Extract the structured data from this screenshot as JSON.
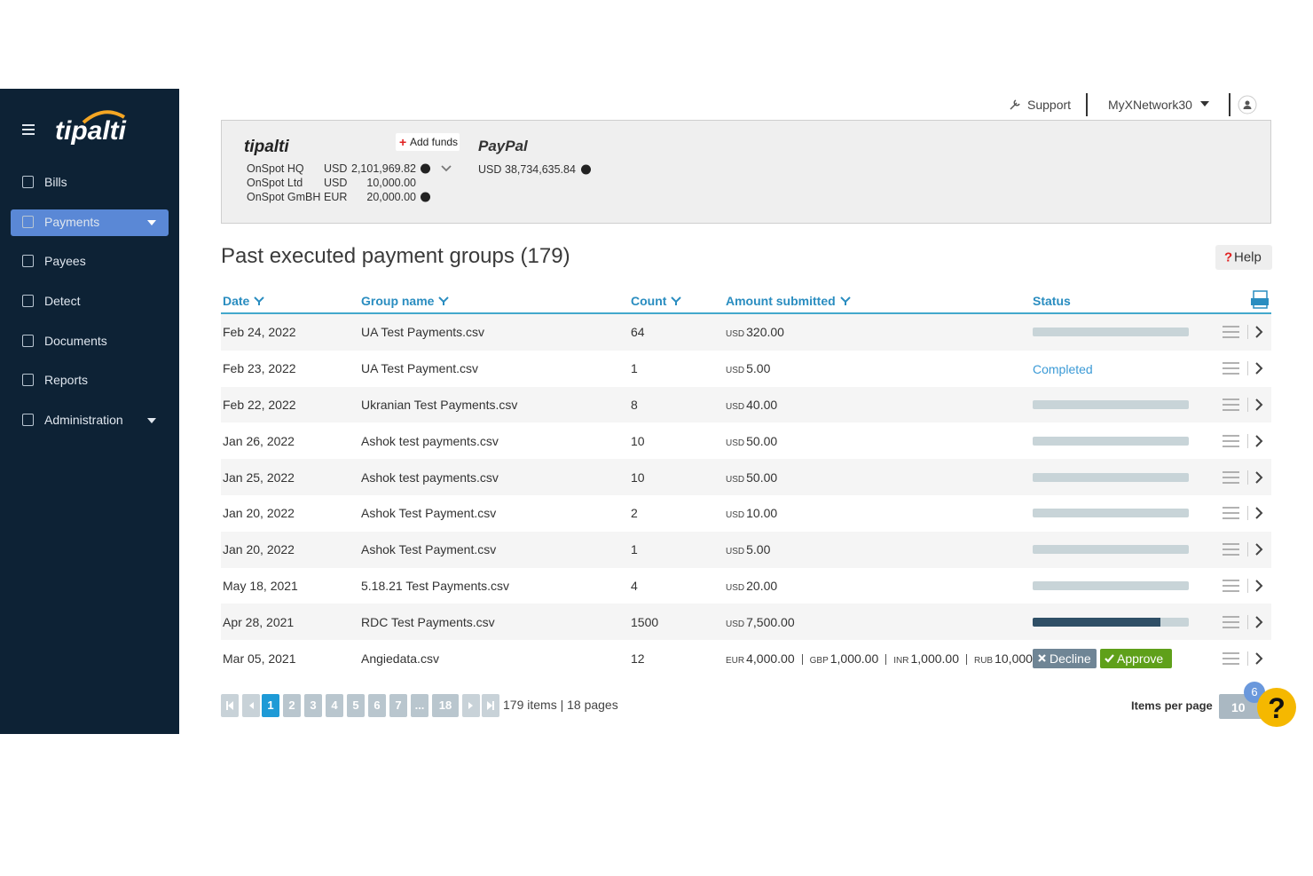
{
  "header": {
    "support": "Support",
    "account": "MyXNetwork30"
  },
  "sidebar": {
    "logo": "tipalti",
    "nav": [
      "Bills",
      "Payments",
      "Payees",
      "Detect",
      "Documents",
      "Reports",
      "Administration"
    ]
  },
  "funding": {
    "logo": "tipalti",
    "add_funds_icon": "+",
    "add_funds": "Add funds",
    "accounts": [
      {
        "name": "OnSpot HQ",
        "currency": "USD",
        "amount": "2,101,969.82"
      },
      {
        "name": "OnSpot Ltd",
        "currency": "USD",
        "amount": "10,000.00"
      },
      {
        "name": "OnSpot GmBH",
        "currency": "EUR",
        "amount": "20,000.00"
      }
    ],
    "paypal": {
      "logo": "PayPal",
      "currency": "USD",
      "amount": "38,734,635.84"
    }
  },
  "title": "Past executed payment groups (179)",
  "help_icon": "?",
  "help": "Help",
  "table": {
    "columns": [
      "Date",
      "Group name",
      "Count",
      "Amount submitted",
      "Status"
    ],
    "rows": [
      {
        "date": "Feb 24, 2022",
        "group": "UA Test Payments.csv",
        "count": 64,
        "amounts": [
          {
            "currency": "USD",
            "amount": "320.00"
          }
        ],
        "progress": 0
      },
      {
        "date": "Feb 23, 2022",
        "group": "UA Test Payment.csv",
        "count": 1,
        "amounts": [
          {
            "currency": "USD",
            "amount": "5.00"
          }
        ],
        "status": "Completed"
      },
      {
        "date": "Feb 22, 2022",
        "group": "Ukranian Test Payments.csv",
        "count": 8,
        "amounts": [
          {
            "currency": "USD",
            "amount": "40.00"
          }
        ],
        "progress": 0
      },
      {
        "date": "Jan 26, 2022",
        "group": "Ashok test payments.csv",
        "count": 10,
        "amounts": [
          {
            "currency": "USD",
            "amount": "50.00"
          }
        ],
        "progress": 0
      },
      {
        "date": "Jan 25, 2022",
        "group": "Ashok test payments.csv",
        "count": 10,
        "amounts": [
          {
            "currency": "USD",
            "amount": "50.00"
          }
        ],
        "progress": 0
      },
      {
        "date": "Jan 20, 2022",
        "group": "Ashok Test Payment.csv",
        "count": 2,
        "amounts": [
          {
            "currency": "USD",
            "amount": "10.00"
          }
        ],
        "progress": 0
      },
      {
        "date": "Jan 20, 2022",
        "group": "Ashok Test Payment.csv",
        "count": 1,
        "amounts": [
          {
            "currency": "USD",
            "amount": "5.00"
          }
        ],
        "progress": 0
      },
      {
        "date": "May 18, 2021",
        "group": "5.18.21 Test Payments.csv",
        "count": 4,
        "amounts": [
          {
            "currency": "USD",
            "amount": "20.00"
          }
        ],
        "progress": 0
      },
      {
        "date": "Apr 28, 2021",
        "group": "RDC Test Payments.csv",
        "count": 1500,
        "amounts": [
          {
            "currency": "USD",
            "amount": "7,500.00"
          }
        ],
        "progress": 82
      },
      {
        "date": "Mar 05, 2021",
        "group": "Angiedata.csv",
        "count": 12,
        "amounts": [
          {
            "currency": "EUR",
            "amount": "4,000.00"
          },
          {
            "currency": "GBP",
            "amount": "1,000.00"
          },
          {
            "currency": "INR",
            "amount": "1,000.00"
          },
          {
            "currency": "RUB",
            "amount": "10,000..."
          }
        ],
        "actions": [
          "Decline",
          "Approve"
        ]
      }
    ]
  },
  "pagination": {
    "pages": [
      "1",
      "2",
      "3",
      "4",
      "5",
      "6",
      "7",
      "...",
      "18"
    ],
    "summary": "179 items | 18 pages",
    "items_per_page_label": "Items per page",
    "items_per_page": "10",
    "badge": "6",
    "help_bubble": "?"
  }
}
